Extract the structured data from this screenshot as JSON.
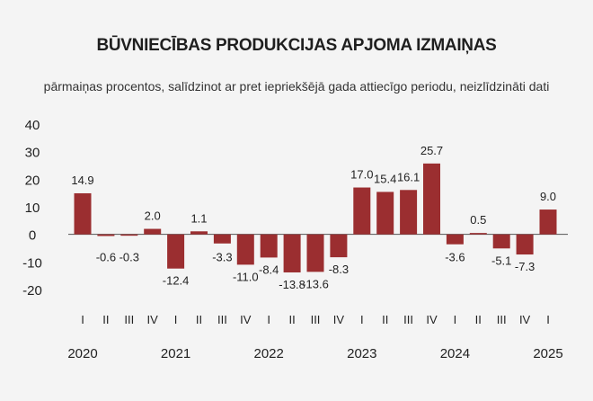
{
  "title": "BŪVNIECĪBAS PRODUKCIJAS APJOMA IZMAIŅAS",
  "subtitle": "pārmaiņas procentos, salīdzinot ar pret iepriekšējā gada attiecīgo periodu, neizlīdzināti dati",
  "colors": {
    "bar": "#9b2e30",
    "zero_line": "#555555"
  },
  "chart_data": {
    "type": "bar",
    "title": "BŪVNIECĪBAS PRODUKCIJAS APJOMA IZMAIŅAS",
    "subtitle": "pārmaiņas procentos, salīdzinot ar pret iepriekšējā gada attiecīgo periodu, neizlīdzināti dati",
    "ylim": [
      -20,
      40
    ],
    "yticks": [
      "40",
      "30",
      "20",
      "10",
      "0",
      "-10",
      "-20"
    ],
    "ytick_values": [
      40,
      30,
      20,
      10,
      0,
      -10,
      -20
    ],
    "categories": [
      "I",
      "II",
      "III",
      "IV",
      "I",
      "II",
      "III",
      "IV",
      "I",
      "II",
      "III",
      "IV",
      "I",
      "II",
      "III",
      "IV",
      "I",
      "II",
      "III",
      "IV",
      "I"
    ],
    "years": [
      "2020",
      "2021",
      "2022",
      "2023",
      "2024",
      "2025"
    ],
    "year_start_index": [
      0,
      4,
      8,
      12,
      16,
      20
    ],
    "values": [
      14.9,
      -0.6,
      -0.3,
      2.0,
      -12.4,
      1.1,
      -3.3,
      -11.0,
      -8.4,
      -13.8,
      -13.6,
      -8.3,
      17.0,
      15.4,
      16.1,
      25.7,
      -3.6,
      0.5,
      -5.1,
      -7.3,
      9.0
    ],
    "labels": [
      "14.9",
      "-0.6",
      "-0.3",
      "2.0",
      "-12.4",
      "1.1",
      "-3.3",
      "-11.0",
      "-8.4",
      "-13.8",
      "-13.6",
      "-8.3",
      "17.0",
      "15.4",
      "16.1",
      "25.7",
      "-3.6",
      "0.5",
      "-5.1",
      "-7.3",
      "9.0"
    ],
    "grid": false,
    "legend": "none"
  }
}
